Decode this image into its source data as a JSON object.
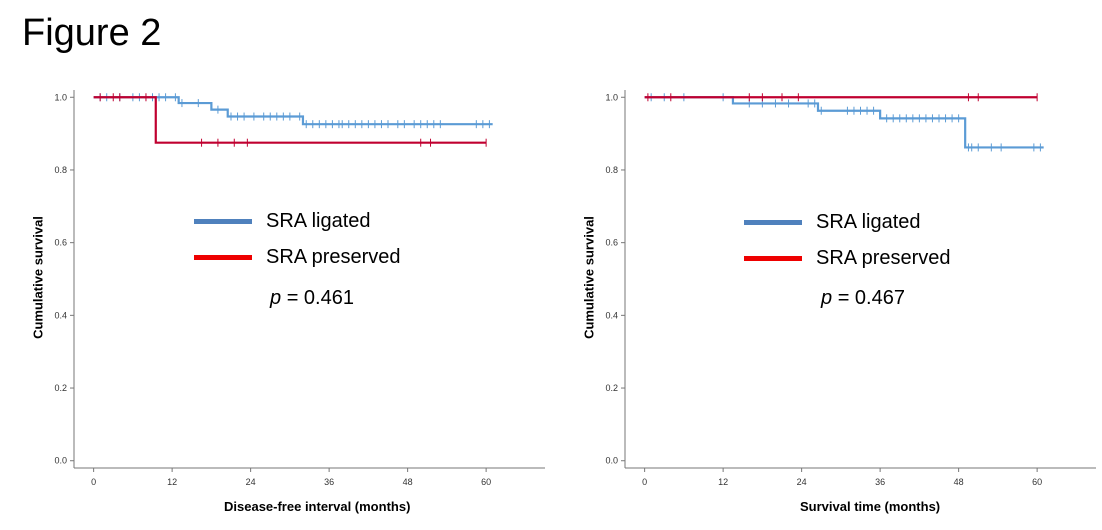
{
  "figure_title": "Figure 2",
  "chart_data": [
    {
      "type": "line",
      "step": true,
      "xlabel": "Disease-free interval (months)",
      "ylabel": "Cumulative survival",
      "xticks": [
        "0",
        "12",
        "24",
        "36",
        "48",
        "60"
      ],
      "yticks": [
        "0.0",
        "0.2",
        "0.4",
        "0.6",
        "0.8",
        "1.0"
      ],
      "xlim": [
        -3,
        69
      ],
      "ylim": [
        -0.02,
        1.02
      ],
      "legend": [
        "SRA ligated",
        "SRA preserved"
      ],
      "p_text": "= 0.461",
      "p_symbol": "p",
      "series": [
        {
          "name": "SRA ligated",
          "color": "#5b9bd5",
          "legend_color": "#4f81bd",
          "steps": [
            [
              0,
              1.0
            ],
            [
              13,
              0.984
            ],
            [
              18,
              0.966
            ],
            [
              20.5,
              0.947
            ],
            [
              32,
              0.926
            ],
            [
              61,
              0.926
            ]
          ],
          "censors": [
            1,
            2,
            4,
            6,
            7,
            9,
            10,
            11,
            12.5,
            13.5,
            16,
            19,
            21,
            22,
            23,
            24.5,
            26,
            27,
            28,
            29,
            30,
            31.5,
            32.5,
            33.5,
            34.5,
            35.5,
            36.5,
            37.5,
            38,
            39,
            40,
            41,
            42,
            43,
            44,
            45,
            46.5,
            47.5,
            49,
            50,
            51,
            52,
            53,
            58.5,
            59.5,
            60.5
          ]
        },
        {
          "name": "SRA preserved",
          "color": "#c00030",
          "legend_color": "#ee0000",
          "steps": [
            [
              0,
              1.0
            ],
            [
              9.5,
              0.875
            ],
            [
              60,
              0.875
            ]
          ],
          "censors": [
            1,
            3,
            4,
            8,
            16.5,
            19,
            21.5,
            23.5,
            50,
            51.5,
            60
          ]
        }
      ]
    },
    {
      "type": "line",
      "step": true,
      "xlabel": "Survival time (months)",
      "ylabel": "Cumulative survival",
      "xticks": [
        "0",
        "12",
        "24",
        "36",
        "48",
        "60"
      ],
      "yticks": [
        "0.0",
        "0.2",
        "0.4",
        "0.6",
        "0.8",
        "1.0"
      ],
      "xlim": [
        -3,
        69
      ],
      "ylim": [
        -0.02,
        1.02
      ],
      "legend": [
        "SRA ligated",
        "SRA preserved"
      ],
      "p_text": "= 0.467",
      "p_symbol": "p",
      "series": [
        {
          "name": "SRA ligated",
          "color": "#5b9bd5",
          "legend_color": "#4f81bd",
          "steps": [
            [
              0,
              1.0
            ],
            [
              13.5,
              0.983
            ],
            [
              26.5,
              0.963
            ],
            [
              36,
              0.942
            ],
            [
              49,
              0.862
            ],
            [
              61,
              0.862
            ]
          ],
          "censors": [
            1,
            3,
            6,
            12,
            16,
            18,
            20,
            22,
            25,
            26,
            27,
            31,
            32,
            33,
            34,
            35,
            37,
            38,
            39,
            40,
            41,
            42,
            43,
            44,
            45,
            46,
            47,
            48,
            49.5,
            50,
            51,
            53,
            54.5,
            59.5,
            60.5
          ]
        },
        {
          "name": "SRA preserved",
          "color": "#c00030",
          "legend_color": "#ee0000",
          "steps": [
            [
              0,
              1.0
            ],
            [
              60,
              1.0
            ]
          ],
          "censors": [
            0.5,
            4,
            16,
            18,
            21,
            23.5,
            49.5,
            51,
            60
          ]
        }
      ]
    }
  ]
}
